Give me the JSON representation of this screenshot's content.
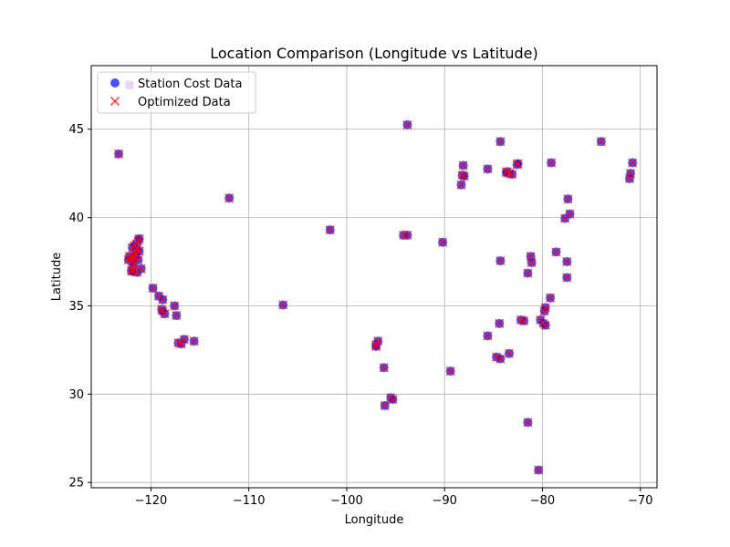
{
  "chart_data": {
    "type": "scatter",
    "title": "Location Comparison (Longitude vs Latitude)",
    "xlabel": "Longitude",
    "ylabel": "Latitude",
    "xlim": [
      -126.1,
      -68.3
    ],
    "ylim": [
      24.7,
      48.6
    ],
    "xticks": [
      -120,
      -110,
      -100,
      -90,
      -80,
      -70
    ],
    "yticks": [
      25,
      30,
      35,
      40,
      45
    ],
    "grid": true,
    "legend_position": "upper-left",
    "series": [
      {
        "name": "Station Cost Data",
        "marker": "circle",
        "color": "#0000ff",
        "edge_color": "#5a5ae6",
        "alpha": 0.7,
        "points": [
          [
            -123.3,
            43.6
          ],
          [
            -122.2,
            47.5
          ],
          [
            -112.0,
            41.1
          ],
          [
            -101.7,
            39.3
          ],
          [
            -106.5,
            35.05
          ],
          [
            -93.8,
            45.25
          ],
          [
            -94.2,
            39.0
          ],
          [
            -93.8,
            39.0
          ],
          [
            -90.2,
            38.6
          ],
          [
            -122.2,
            37.8
          ],
          [
            -122.0,
            37.7
          ],
          [
            -121.8,
            37.8
          ],
          [
            -122.3,
            37.6
          ],
          [
            -121.9,
            37.5
          ],
          [
            -121.8,
            37.3
          ],
          [
            -121.6,
            38.0
          ],
          [
            -121.5,
            38.5
          ],
          [
            -121.3,
            38.7
          ],
          [
            -121.2,
            38.8
          ],
          [
            -121.4,
            38.2
          ],
          [
            -121.2,
            38.1
          ],
          [
            -121.9,
            38.3
          ],
          [
            -121.7,
            38.4
          ],
          [
            -121.5,
            37.9
          ],
          [
            -121.3,
            37.6
          ],
          [
            -121.0,
            37.1
          ],
          [
            -121.4,
            36.9
          ],
          [
            -122.0,
            37.0
          ],
          [
            -121.8,
            37.0
          ],
          [
            -121.9,
            36.95
          ],
          [
            -119.8,
            36.0
          ],
          [
            -119.2,
            35.55
          ],
          [
            -118.8,
            35.35
          ],
          [
            -118.9,
            34.8
          ],
          [
            -118.6,
            34.55
          ],
          [
            -118.8,
            34.7
          ],
          [
            -117.6,
            35.0
          ],
          [
            -117.4,
            34.45
          ],
          [
            -117.2,
            32.9
          ],
          [
            -116.9,
            32.85
          ],
          [
            -116.6,
            33.1
          ],
          [
            -115.6,
            33.0
          ],
          [
            -97.0,
            32.8
          ],
          [
            -96.8,
            33.0
          ],
          [
            -97.0,
            32.7
          ],
          [
            -96.2,
            31.5
          ],
          [
            -95.5,
            29.8
          ],
          [
            -95.3,
            29.7
          ],
          [
            -96.1,
            29.35
          ],
          [
            -89.4,
            31.3
          ],
          [
            -88.1,
            42.95
          ],
          [
            -88.2,
            42.4
          ],
          [
            -88.0,
            42.35
          ],
          [
            -88.3,
            41.85
          ],
          [
            -85.6,
            42.75
          ],
          [
            -84.3,
            44.3
          ],
          [
            -83.6,
            42.6
          ],
          [
            -83.4,
            42.5
          ],
          [
            -83.1,
            42.45
          ],
          [
            -83.7,
            42.55
          ],
          [
            -82.6,
            43.0
          ],
          [
            -82.5,
            43.05
          ],
          [
            -84.3,
            37.55
          ],
          [
            -85.6,
            33.3
          ],
          [
            -84.4,
            34.0
          ],
          [
            -84.7,
            32.1
          ],
          [
            -84.3,
            32.0
          ],
          [
            -83.4,
            32.3
          ],
          [
            -82.2,
            34.2
          ],
          [
            -81.9,
            34.15
          ],
          [
            -81.5,
            36.85
          ],
          [
            -81.2,
            37.8
          ],
          [
            -81.1,
            37.45
          ],
          [
            -81.5,
            28.4
          ],
          [
            -80.4,
            25.7
          ],
          [
            -79.9,
            34.0
          ],
          [
            -80.2,
            34.2
          ],
          [
            -79.7,
            33.9
          ],
          [
            -79.8,
            34.7
          ],
          [
            -79.7,
            34.9
          ],
          [
            -79.2,
            35.45
          ],
          [
            -79.1,
            43.1
          ],
          [
            -78.6,
            38.05
          ],
          [
            -77.7,
            39.95
          ],
          [
            -77.4,
            41.05
          ],
          [
            -77.2,
            40.2
          ],
          [
            -77.5,
            37.5
          ],
          [
            -77.5,
            36.6
          ],
          [
            -74.0,
            44.3
          ],
          [
            -71.1,
            42.2
          ],
          [
            -71.0,
            42.5
          ],
          [
            -70.8,
            43.1
          ]
        ]
      },
      {
        "name": "Optimized Data",
        "marker": "x",
        "color": "#ff0000",
        "alpha": 0.7,
        "points": [
          [
            -123.3,
            43.6
          ],
          [
            -122.2,
            47.5
          ],
          [
            -112.0,
            41.1
          ],
          [
            -101.7,
            39.3
          ],
          [
            -106.5,
            35.05
          ],
          [
            -93.8,
            45.25
          ],
          [
            -94.2,
            39.0
          ],
          [
            -93.8,
            39.0
          ],
          [
            -90.2,
            38.6
          ],
          [
            -122.2,
            37.8
          ],
          [
            -122.0,
            37.7
          ],
          [
            -121.8,
            37.8
          ],
          [
            -122.3,
            37.6
          ],
          [
            -121.9,
            37.5
          ],
          [
            -121.8,
            37.3
          ],
          [
            -121.6,
            38.0
          ],
          [
            -121.5,
            38.5
          ],
          [
            -121.3,
            38.7
          ],
          [
            -121.2,
            38.8
          ],
          [
            -121.4,
            38.2
          ],
          [
            -121.2,
            38.1
          ],
          [
            -121.9,
            38.3
          ],
          [
            -121.7,
            38.4
          ],
          [
            -121.5,
            37.9
          ],
          [
            -121.3,
            37.6
          ],
          [
            -121.0,
            37.1
          ],
          [
            -121.4,
            36.9
          ],
          [
            -122.0,
            37.0
          ],
          [
            -121.8,
            37.0
          ],
          [
            -121.9,
            36.95
          ],
          [
            -119.8,
            36.0
          ],
          [
            -119.2,
            35.55
          ],
          [
            -118.8,
            35.35
          ],
          [
            -118.9,
            34.8
          ],
          [
            -118.6,
            34.55
          ],
          [
            -118.8,
            34.7
          ],
          [
            -117.6,
            35.0
          ],
          [
            -117.4,
            34.45
          ],
          [
            -117.2,
            32.9
          ],
          [
            -116.9,
            32.85
          ],
          [
            -116.6,
            33.1
          ],
          [
            -115.6,
            33.0
          ],
          [
            -97.0,
            32.8
          ],
          [
            -96.8,
            33.0
          ],
          [
            -97.0,
            32.7
          ],
          [
            -96.2,
            31.5
          ],
          [
            -95.5,
            29.8
          ],
          [
            -95.3,
            29.7
          ],
          [
            -96.1,
            29.35
          ],
          [
            -89.4,
            31.3
          ],
          [
            -88.1,
            42.95
          ],
          [
            -88.2,
            42.4
          ],
          [
            -88.0,
            42.35
          ],
          [
            -88.3,
            41.85
          ],
          [
            -85.6,
            42.75
          ],
          [
            -84.3,
            44.3
          ],
          [
            -83.6,
            42.6
          ],
          [
            -83.4,
            42.5
          ],
          [
            -83.1,
            42.45
          ],
          [
            -83.7,
            42.55
          ],
          [
            -82.6,
            43.0
          ],
          [
            -82.5,
            43.05
          ],
          [
            -84.3,
            37.55
          ],
          [
            -85.6,
            33.3
          ],
          [
            -84.4,
            34.0
          ],
          [
            -84.7,
            32.1
          ],
          [
            -84.3,
            32.0
          ],
          [
            -83.4,
            32.3
          ],
          [
            -82.2,
            34.2
          ],
          [
            -81.9,
            34.15
          ],
          [
            -81.5,
            36.85
          ],
          [
            -81.2,
            37.8
          ],
          [
            -81.1,
            37.45
          ],
          [
            -81.5,
            28.4
          ],
          [
            -80.4,
            25.7
          ],
          [
            -79.9,
            34.0
          ],
          [
            -80.2,
            34.2
          ],
          [
            -79.7,
            33.9
          ],
          [
            -79.8,
            34.7
          ],
          [
            -79.7,
            34.9
          ],
          [
            -79.2,
            35.45
          ],
          [
            -79.1,
            43.1
          ],
          [
            -78.6,
            38.05
          ],
          [
            -77.7,
            39.95
          ],
          [
            -77.4,
            41.05
          ],
          [
            -77.2,
            40.2
          ],
          [
            -77.5,
            37.5
          ],
          [
            -77.5,
            36.6
          ],
          [
            -74.0,
            44.3
          ],
          [
            -71.1,
            42.2
          ],
          [
            -71.0,
            42.5
          ],
          [
            -70.8,
            43.1
          ]
        ]
      }
    ]
  }
}
